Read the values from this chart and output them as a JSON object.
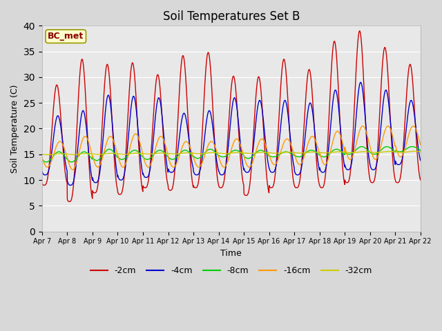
{
  "title": "Soil Temperatures Set B",
  "xlabel": "Time",
  "ylabel": "Soil Temperature (C)",
  "ylim": [
    0,
    40
  ],
  "yticks": [
    0,
    5,
    10,
    15,
    20,
    25,
    30,
    35,
    40
  ],
  "fig_bg": "#d8d8d8",
  "plot_bg": "#e8e8e8",
  "legend_label": "BC_met",
  "series_labels": [
    "-2cm",
    "-4cm",
    "-8cm",
    "-16cm",
    "-32cm"
  ],
  "series_colors": [
    "#cc0000",
    "#0000cc",
    "#00cc00",
    "#ff9900",
    "#cccc00"
  ],
  "day_labels": [
    "Apr 7",
    "Apr 8",
    "Apr 9",
    "Apr 10",
    "Apr 11",
    "Apr 12",
    "Apr 13",
    "Apr 14",
    "Apr 15",
    "Apr 16",
    "Apr 17",
    "Apr 18",
    "Apr 19",
    "Apr 20",
    "Apr 21",
    "Apr 22"
  ],
  "peaks_2cm": [
    28.5,
    33.5,
    32.5,
    32.8,
    30.5,
    34.2,
    34.8,
    30.2,
    30.1,
    33.5,
    31.5,
    37.0,
    39.0,
    35.8,
    32.5,
    32.5
  ],
  "troughs_2cm": [
    9.0,
    5.8,
    7.5,
    7.2,
    8.5,
    8.0,
    8.5,
    8.5,
    7.0,
    8.5,
    8.5,
    8.5,
    9.5,
    9.5,
    9.5,
    12.0
  ],
  "peaks_4cm": [
    22.5,
    23.5,
    26.5,
    26.3,
    26.0,
    23.0,
    23.5,
    26.0,
    25.5,
    25.5,
    25.0,
    27.5,
    29.0,
    27.5,
    25.5,
    25.0
  ],
  "troughs_4cm": [
    11.0,
    9.0,
    9.5,
    10.0,
    10.5,
    11.5,
    11.0,
    11.0,
    11.5,
    11.5,
    11.0,
    11.5,
    12.0,
    12.0,
    13.0,
    13.5
  ],
  "peaks_8cm": [
    15.5,
    15.5,
    16.0,
    15.8,
    15.8,
    15.8,
    16.0,
    15.8,
    15.8,
    15.5,
    15.8,
    16.0,
    16.5,
    16.5,
    16.5,
    16.5
  ],
  "troughs_8cm": [
    13.5,
    13.5,
    13.8,
    14.0,
    14.0,
    14.0,
    14.2,
    14.5,
    14.2,
    14.5,
    14.5,
    14.5,
    15.0,
    15.0,
    15.5,
    15.5
  ],
  "peaks_16cm": [
    17.5,
    18.5,
    18.5,
    19.0,
    18.5,
    17.5,
    17.5,
    18.0,
    18.0,
    18.0,
    18.5,
    19.5,
    20.5,
    20.5,
    20.5,
    20.0
  ],
  "troughs_16cm": [
    12.5,
    12.0,
    12.5,
    12.5,
    12.5,
    12.5,
    12.5,
    12.5,
    12.5,
    13.0,
    13.0,
    13.0,
    14.0,
    14.0,
    14.5,
    14.5
  ],
  "base_32cm": 15.0,
  "peak_hour_2cm": 14,
  "trough_hour_2cm": 6,
  "peak_hour_4cm": 15,
  "trough_hour_4cm": 7,
  "peak_hour_16cm": 17,
  "trough_hour_16cm": 9,
  "peak_hour_8cm": 16,
  "trough_hour_8cm": 8
}
